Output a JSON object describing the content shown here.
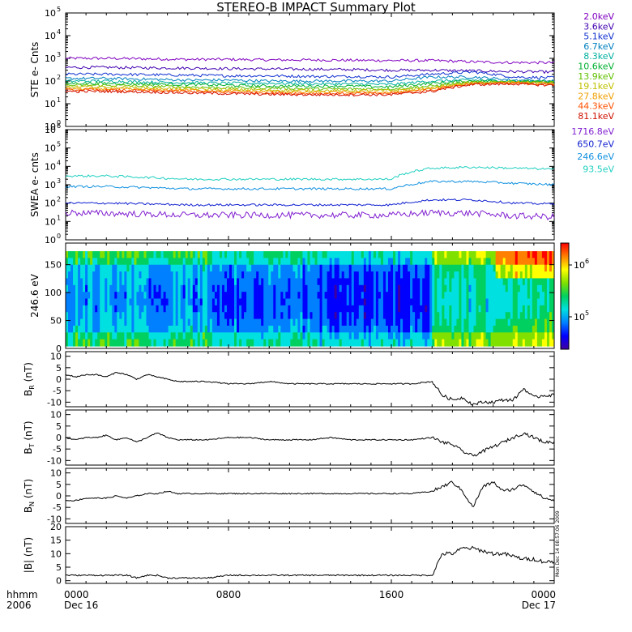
{
  "title": "STEREO-B IMPACT Summary Plot",
  "time_axis": {
    "row1_label": "hhmm",
    "row2_label": "2006",
    "ticks": [
      {
        "time": "0000",
        "date": "Dec 16",
        "hours": 0
      },
      {
        "time": "0800",
        "date": "",
        "hours": 8
      },
      {
        "time": "1600",
        "date": "",
        "hours": 16
      },
      {
        "time": "0000",
        "date": "Dec 17",
        "hours": 24
      }
    ]
  },
  "timestamp_note": "Mon Dec 14 08:57:06 2009",
  "colors": {
    "ste": [
      "#8000c0",
      "#4000b0",
      "#1030d0",
      "#0080c0",
      "#00b0a0",
      "#00b030",
      "#60c000",
      "#c0c000",
      "#f0a000",
      "#ff5000",
      "#d01000"
    ],
    "swea": [
      "#8020d0",
      "#1020d0",
      "#1090e0",
      "#20d0c0"
    ],
    "colorbar": [
      "#4000a0",
      "#0000ff",
      "#0080ff",
      "#00e0e0",
      "#00d060",
      "#80e000",
      "#ffff00",
      "#ff8000",
      "#ff0000"
    ]
  },
  "chart_data": [
    {
      "type": "line",
      "ylabel": "STE e- Cnts",
      "yscale": "log",
      "ylim": [
        1,
        100000
      ],
      "ytick_labels": [
        "10^0",
        "10^1",
        "10^2",
        "10^3",
        "10^4",
        "10^5"
      ],
      "legend_placement": "right",
      "series": [
        {
          "name": "2.0keV",
          "values": [
            1000,
            1000,
            950,
            900,
            900,
            850,
            850,
            820,
            800,
            800,
            700,
            650,
            650
          ]
        },
        {
          "name": "3.6keV",
          "values": [
            400,
            400,
            380,
            370,
            350,
            340,
            330,
            320,
            300,
            300,
            280,
            260,
            250
          ]
        },
        {
          "name": "5.1keV",
          "values": [
            200,
            200,
            190,
            180,
            170,
            170,
            160,
            160,
            150,
            200,
            250,
            150,
            140
          ]
        },
        {
          "name": "6.7keV",
          "values": [
            130,
            130,
            120,
            110,
            110,
            100,
            100,
            100,
            100,
            150,
            150,
            110,
            100
          ]
        },
        {
          "name": "8.3keV",
          "values": [
            100,
            100,
            90,
            85,
            80,
            80,
            75,
            75,
            70,
            100,
            110,
            100,
            90
          ]
        },
        {
          "name": "10.6keV",
          "values": [
            80,
            80,
            75,
            70,
            65,
            60,
            60,
            60,
            55,
            80,
            100,
            100,
            90
          ]
        },
        {
          "name": "13.9keV",
          "values": [
            65,
            65,
            60,
            55,
            50,
            50,
            45,
            45,
            45,
            60,
            90,
            95,
            85
          ]
        },
        {
          "name": "19.1keV",
          "values": [
            55,
            55,
            50,
            45,
            42,
            40,
            38,
            38,
            38,
            50,
            80,
            90,
            80
          ]
        },
        {
          "name": "27.8keV",
          "values": [
            45,
            45,
            42,
            40,
            36,
            34,
            32,
            32,
            32,
            45,
            80,
            85,
            75
          ]
        },
        {
          "name": "44.3keV",
          "values": [
            40,
            40,
            37,
            35,
            32,
            30,
            28,
            28,
            28,
            40,
            75,
            80,
            70
          ]
        },
        {
          "name": "81.1keV",
          "values": [
            35,
            35,
            33,
            30,
            28,
            26,
            25,
            25,
            25,
            35,
            70,
            75,
            65
          ]
        }
      ]
    },
    {
      "type": "line",
      "ylabel": "SWEA e- cnts",
      "yscale": "log",
      "ylim": [
        1,
        1000000
      ],
      "ytick_labels": [
        "10^0",
        "10^1",
        "10^2",
        "10^3",
        "10^4",
        "10^5",
        "10^6"
      ],
      "legend_placement": "right",
      "series": [
        {
          "name": "1716.8eV",
          "values": [
            30,
            28,
            25,
            22,
            22,
            22,
            22,
            22,
            22,
            30,
            28,
            20,
            18
          ]
        },
        {
          "name": "650.7eV",
          "values": [
            100,
            100,
            90,
            80,
            80,
            80,
            80,
            80,
            80,
            150,
            150,
            100,
            90
          ]
        },
        {
          "name": "246.6eV",
          "values": [
            800,
            800,
            700,
            600,
            600,
            600,
            600,
            600,
            600,
            1500,
            1500,
            1200,
            1000
          ]
        },
        {
          "name": "93.5eV",
          "values": [
            3000,
            3000,
            2500,
            2000,
            2000,
            2000,
            2000,
            2000,
            2000,
            8000,
            9000,
            8000,
            7000
          ]
        }
      ]
    },
    {
      "type": "heatmap",
      "ylabel": "246.6 eV",
      "ylim": [
        0,
        180
      ],
      "yticks": [
        0,
        50,
        100,
        150
      ],
      "colorbar_ticks": [
        "10^5",
        "10^6"
      ]
    },
    {
      "type": "line",
      "ylabel": "B_R (nT)",
      "ylim": [
        -12,
        12
      ],
      "yticks": [
        -10,
        -5,
        0,
        5,
        10
      ],
      "x_hours": [
        0,
        0.5,
        1,
        1.5,
        2,
        2.5,
        3,
        3.5,
        4,
        4.5,
        5,
        5.5,
        6,
        7,
        8,
        9,
        10,
        11,
        12,
        13,
        14,
        15,
        16,
        17,
        18,
        18.5,
        19,
        19.5,
        20,
        20.5,
        21,
        21.5,
        22,
        22.5,
        23,
        23.5,
        24
      ],
      "values": [
        2,
        1,
        2,
        2,
        1,
        3,
        2,
        0,
        2,
        1,
        0,
        -1,
        -1,
        -1,
        -2,
        -2,
        -1,
        -2,
        -2,
        -2,
        -2,
        -2,
        -2,
        -2,
        -1,
        -7,
        -9,
        -8,
        -11,
        -10,
        -10,
        -9,
        -9,
        -4,
        -8,
        -7,
        -7
      ]
    },
    {
      "type": "line",
      "ylabel": "B_T (nT)",
      "ylim": [
        -12,
        12
      ],
      "yticks": [
        -10,
        -5,
        0,
        5,
        10
      ],
      "x_hours": [
        0,
        0.5,
        1,
        1.5,
        2,
        2.5,
        3,
        3.5,
        4,
        4.5,
        5,
        5.5,
        6,
        7,
        8,
        9,
        10,
        11,
        12,
        13,
        14,
        15,
        16,
        17,
        18,
        18.5,
        19,
        19.5,
        20,
        20.5,
        21,
        21.5,
        22,
        22.5,
        23,
        23.5,
        24
      ],
      "values": [
        0,
        -1,
        0,
        0,
        1,
        -1,
        0,
        -2,
        0,
        2,
        0,
        -1,
        -1,
        -1,
        0,
        0,
        -1,
        -1,
        -1,
        0,
        -1,
        -1,
        -1,
        -1,
        0,
        -2,
        -3,
        -6,
        -8,
        -6,
        -4,
        -2,
        0,
        2,
        0,
        -2,
        -2
      ]
    },
    {
      "type": "line",
      "ylabel": "B_N (nT)",
      "ylim": [
        -12,
        12
      ],
      "yticks": [
        -10,
        -5,
        0,
        5,
        10
      ],
      "x_hours": [
        0,
        0.5,
        1,
        1.5,
        2,
        2.5,
        3,
        3.5,
        4,
        4.5,
        5,
        5.5,
        6,
        7,
        8,
        9,
        10,
        11,
        12,
        13,
        14,
        15,
        16,
        17,
        18,
        18.5,
        19,
        19.5,
        20,
        20.5,
        21,
        21.5,
        22,
        22.5,
        23,
        23.5,
        24
      ],
      "values": [
        -2,
        -2,
        -1,
        -1,
        -1,
        0,
        -1,
        0,
        1,
        1,
        2,
        1,
        1,
        1,
        1,
        1,
        1,
        1,
        1,
        1,
        1,
        1,
        1,
        1,
        2,
        4,
        6,
        2,
        -5,
        4,
        6,
        2,
        3,
        5,
        2,
        -1,
        -2
      ]
    },
    {
      "type": "line",
      "ylabel": "|B| (nT)",
      "ylim": [
        -1,
        20
      ],
      "yticks": [
        0,
        5,
        10,
        15,
        20
      ],
      "x_hours": [
        0,
        0.5,
        1,
        1.5,
        2,
        2.5,
        3,
        3.5,
        4,
        4.5,
        5,
        5.5,
        6,
        7,
        8,
        9,
        10,
        11,
        12,
        13,
        14,
        15,
        16,
        17,
        18,
        18.5,
        19,
        19.5,
        20,
        20.5,
        21,
        21.5,
        22,
        22.5,
        23,
        23.5,
        24
      ],
      "values": [
        2,
        2,
        2,
        2,
        2,
        2,
        2,
        1,
        2,
        2,
        1,
        1,
        1,
        1,
        2,
        2,
        2,
        2,
        2,
        2,
        2,
        2,
        2,
        2,
        2,
        10,
        10,
        12,
        12,
        11,
        10,
        10,
        9,
        8,
        8,
        7,
        7
      ]
    }
  ]
}
